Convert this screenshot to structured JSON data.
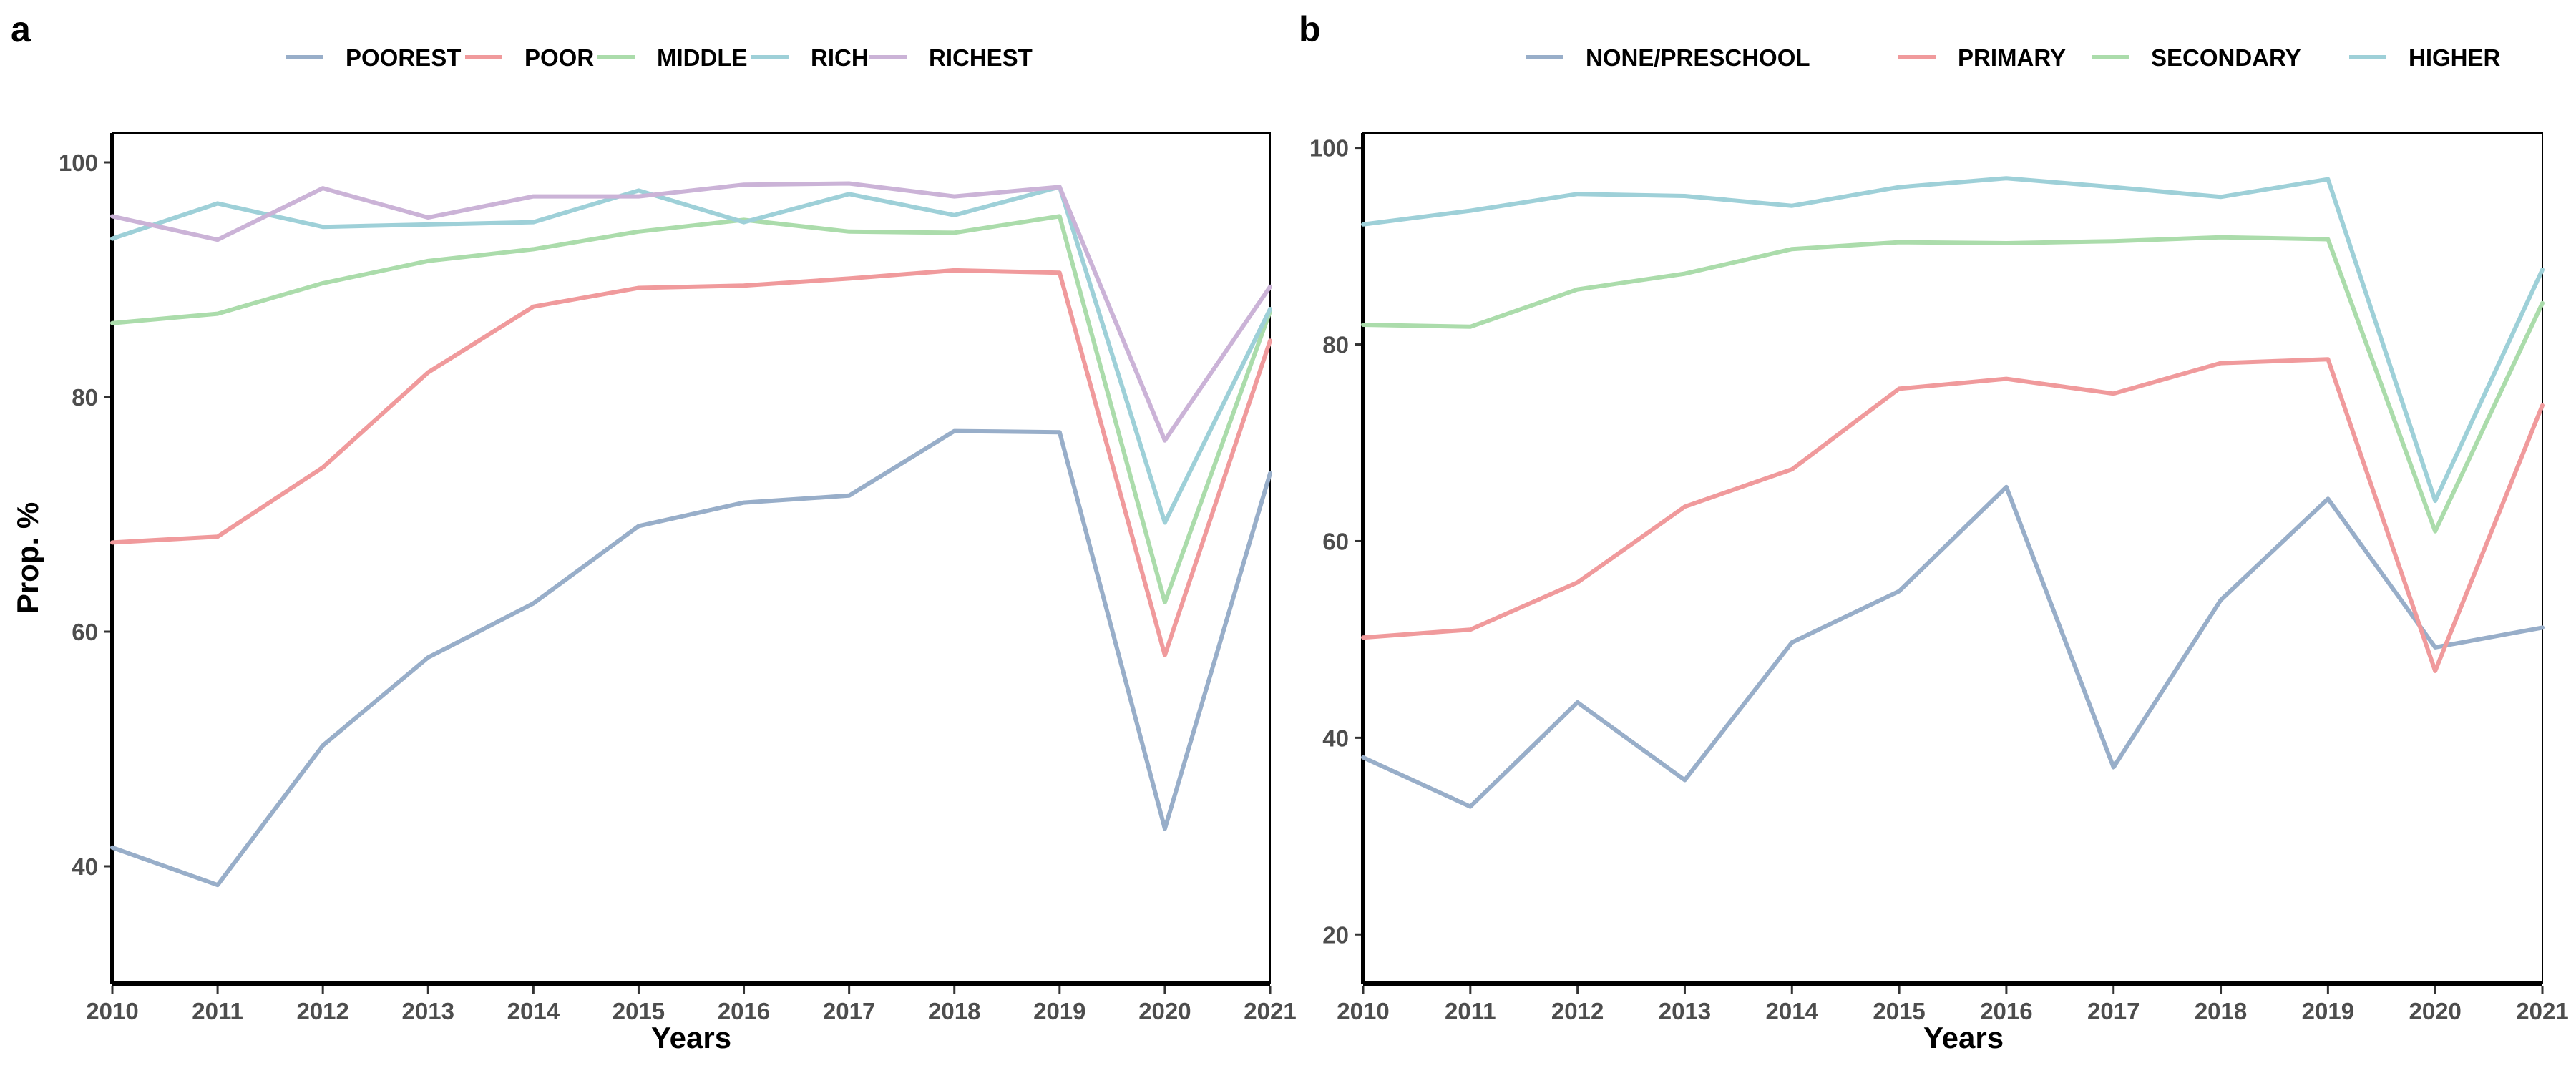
{
  "chart_data": [
    {
      "type": "line",
      "panel_label": "a",
      "xlabel": "Years",
      "ylabel": "Prop. %",
      "x": [
        2010,
        2011,
        2012,
        2013,
        2014,
        2015,
        2016,
        2017,
        2018,
        2019,
        2020,
        2021
      ],
      "x_ticks": [
        "2010",
        "2011",
        "2012",
        "2013",
        "2014",
        "2015",
        "2016",
        "2017",
        "2018",
        "2019",
        "2020",
        "2021"
      ],
      "xlim": [
        2010,
        2021
      ],
      "ylim": [
        30,
        102.5
      ],
      "y_ticks": [
        "40",
        "60",
        "80",
        "100"
      ],
      "legend_position": "top",
      "grid": false,
      "series": [
        {
          "name": "POOREST",
          "color": "#98aec9",
          "values": [
            41.6,
            38.4,
            50.3,
            57.8,
            62.4,
            69.0,
            71.0,
            71.6,
            77.1,
            77.0,
            43.2,
            73.5
          ]
        },
        {
          "name": "POOR",
          "color": "#f09a9c",
          "values": [
            67.6,
            68.1,
            74.0,
            82.1,
            87.7,
            89.3,
            89.5,
            90.1,
            90.8,
            90.6,
            58.0,
            84.8
          ]
        },
        {
          "name": "MIDDLE",
          "color": "#abdcab",
          "values": [
            86.3,
            87.1,
            89.7,
            91.6,
            92.6,
            94.1,
            95.1,
            94.1,
            94.0,
            95.4,
            62.5,
            87.3
          ]
        },
        {
          "name": "RICH",
          "color": "#9ed0d8",
          "values": [
            93.5,
            96.5,
            94.5,
            94.7,
            94.9,
            97.6,
            94.9,
            97.3,
            95.5,
            97.9,
            69.3,
            87.5
          ]
        },
        {
          "name": "RICHEST",
          "color": "#cbb3d7",
          "values": [
            95.4,
            93.4,
            97.8,
            95.3,
            97.1,
            97.1,
            98.1,
            98.2,
            97.1,
            97.9,
            76.3,
            89.4
          ]
        }
      ]
    },
    {
      "type": "line",
      "panel_label": "b",
      "xlabel": "Years",
      "ylabel": "",
      "x": [
        2010,
        2011,
        2012,
        2013,
        2014,
        2015,
        2016,
        2017,
        2018,
        2019,
        2020,
        2021
      ],
      "x_ticks": [
        "2010",
        "2011",
        "2012",
        "2013",
        "2014",
        "2015",
        "2016",
        "2017",
        "2018",
        "2019",
        "2020",
        "2021"
      ],
      "xlim": [
        2010,
        2021
      ],
      "ylim": [
        15,
        101.5
      ],
      "y_ticks": [
        "20",
        "40",
        "60",
        "80",
        "100"
      ],
      "legend_position": "top",
      "grid": false,
      "series": [
        {
          "name": "NONE/PRESCHOOL",
          "color": "#98aec9",
          "values": [
            38.0,
            33.0,
            43.6,
            35.7,
            49.7,
            54.9,
            65.5,
            37.0,
            54.0,
            64.3,
            49.2,
            51.2
          ]
        },
        {
          "name": "PRIMARY",
          "color": "#f09a9c",
          "values": [
            50.2,
            51.0,
            55.8,
            63.5,
            67.3,
            75.5,
            76.5,
            75.0,
            78.1,
            78.5,
            46.8,
            73.8
          ]
        },
        {
          "name": "SECONDARY",
          "color": "#abdcab",
          "values": [
            82.0,
            81.8,
            85.6,
            87.2,
            89.7,
            90.4,
            90.3,
            90.5,
            90.9,
            90.7,
            61.0,
            84.2
          ]
        },
        {
          "name": "HIGHER",
          "color": "#9ed0d8",
          "values": [
            92.2,
            93.6,
            95.3,
            95.1,
            94.1,
            96.0,
            96.9,
            96.0,
            95.0,
            96.8,
            64.1,
            87.6
          ]
        }
      ]
    }
  ]
}
